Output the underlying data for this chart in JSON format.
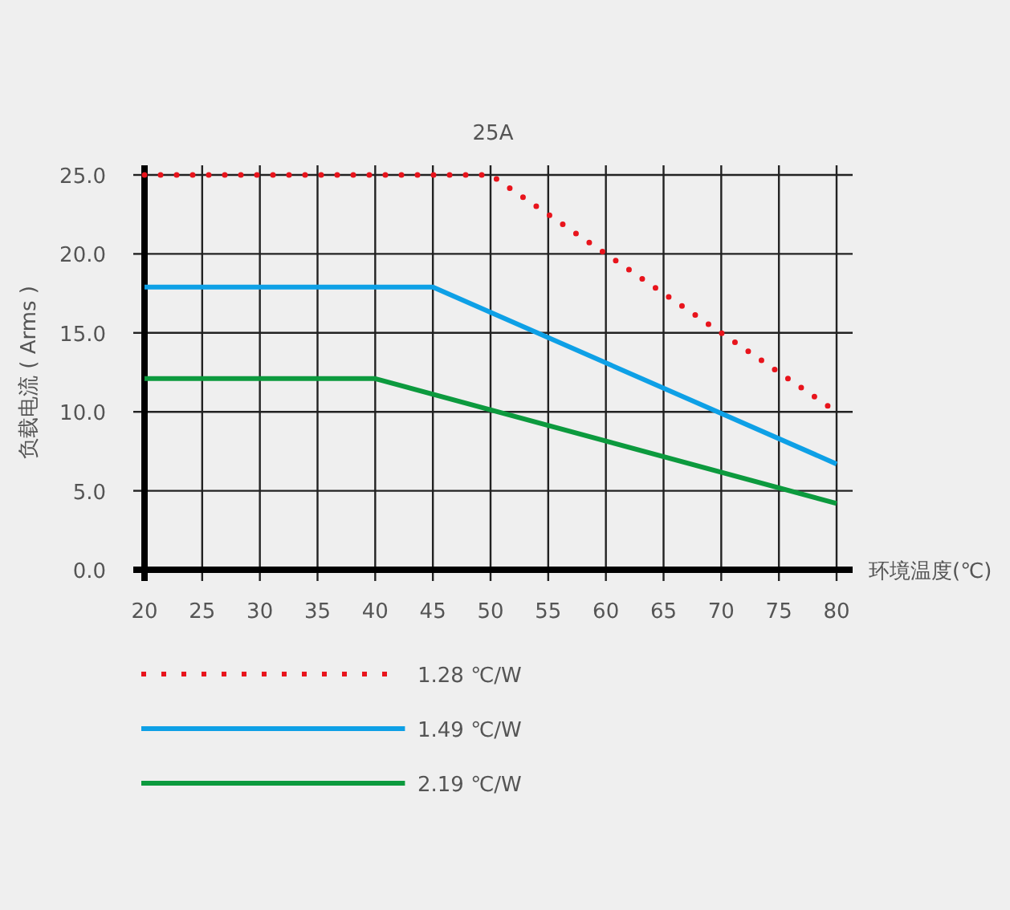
{
  "chart_data": {
    "type": "line",
    "title": "25A",
    "xlabel": "环境温度(℃)",
    "ylabel": "负载电流 ( Arms )",
    "xlim": [
      20,
      80
    ],
    "xticks": [
      20,
      25,
      30,
      35,
      40,
      45,
      50,
      55,
      60,
      65,
      70,
      75,
      80
    ],
    "ylim": [
      0,
      25
    ],
    "yticks": [
      {
        "value": 0,
        "label": "0.0"
      },
      {
        "value": 5,
        "label": "5.0"
      },
      {
        "value": 10,
        "label": "10.0"
      },
      {
        "value": 15,
        "label": "15.0"
      },
      {
        "value": 20,
        "label": "20.0"
      },
      {
        "value": 25,
        "label": "25.0"
      }
    ],
    "grid": true,
    "legend": "bottom",
    "marker": "none",
    "series": [
      {
        "name": "1.28 ℃/W",
        "color": "#e8141c",
        "line_style": "dotted",
        "x": [
          20,
          50,
          80
        ],
        "values": [
          25,
          25,
          10
        ]
      },
      {
        "name": "1.49 ℃/W",
        "color": "#0ea0e6",
        "line_style": "solid",
        "x": [
          20,
          45,
          80
        ],
        "values": [
          17.9,
          17.9,
          6.7
        ]
      },
      {
        "name": "2.19 ℃/W",
        "color": "#0c9a3e",
        "line_style": "solid",
        "x": [
          20,
          40,
          80
        ],
        "values": [
          12.1,
          12.1,
          4.2
        ]
      }
    ]
  }
}
